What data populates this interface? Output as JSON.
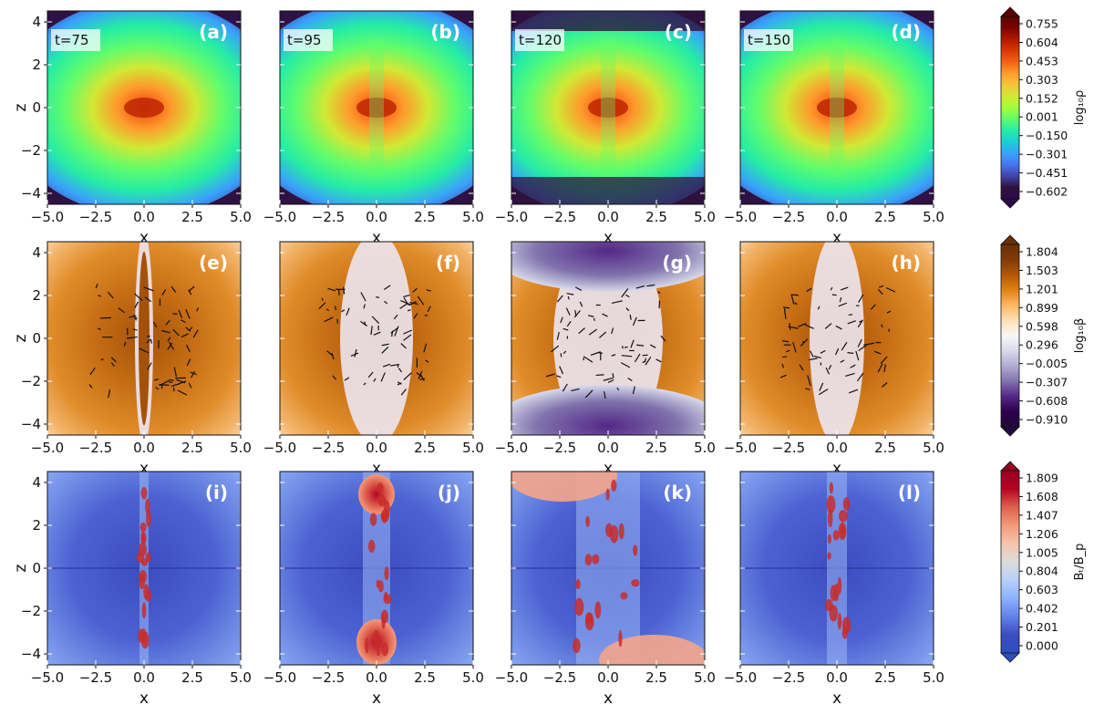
{
  "figure": {
    "rows": [
      {
        "colorbar": {
          "title": "log₁₀ρ",
          "ticks": [
            "0.755",
            "0.604",
            "0.453",
            "0.303",
            "0.152",
            "0.001",
            "−0.150",
            "−0.301",
            "−0.451",
            "−0.602"
          ],
          "colors": [
            "#2d0a4a",
            "#30123b",
            "#4145ab",
            "#4675ed",
            "#39a2fc",
            "#1bcfd4",
            "#24eca6",
            "#61fc6c",
            "#a4fc3b",
            "#d1e834",
            "#f3c63a",
            "#fe9b2d",
            "#f36315",
            "#d93806",
            "#b11901",
            "#7a0402",
            "#5a0202"
          ]
        },
        "panels": [
          {
            "label": "(a)",
            "time": "t=75"
          },
          {
            "label": "(b)",
            "time": "t=95"
          },
          {
            "label": "(c)",
            "time": "t=120"
          },
          {
            "label": "(d)",
            "time": "t=150"
          }
        ]
      },
      {
        "colorbar": {
          "title": "log₁₀β",
          "ticks": [
            "1.804",
            "1.503",
            "1.201",
            "0.899",
            "0.598",
            "0.296",
            "−0.005",
            "−0.307",
            "−0.608",
            "−0.910"
          ],
          "colors": [
            "#1f0a3a",
            "#2d004b",
            "#542788",
            "#8073ac",
            "#b2abd2",
            "#d8daeb",
            "#f7f7f7",
            "#fee0b6",
            "#fdb863",
            "#e08214",
            "#b35806",
            "#7f3b08",
            "#6a3006"
          ]
        },
        "panels": [
          {
            "label": "(e)"
          },
          {
            "label": "(f)"
          },
          {
            "label": "(g)"
          },
          {
            "label": "(h)"
          }
        ]
      },
      {
        "colorbar": {
          "title": "Bₜ/B_p",
          "ticks": [
            "1.809",
            "1.608",
            "1.407",
            "1.206",
            "1.005",
            "0.804",
            "0.603",
            "0.402",
            "0.201",
            "0.000"
          ],
          "colors": [
            "#2f4fc0",
            "#3b4cc0",
            "#6282ea",
            "#8db0fe",
            "#b8d0f9",
            "#dddcdc",
            "#f5c4ad",
            "#f49a7b",
            "#de604d",
            "#b40426",
            "#950020"
          ]
        },
        "panels": [
          {
            "label": "(i)"
          },
          {
            "label": "(j)"
          },
          {
            "label": "(k)"
          },
          {
            "label": "(l)"
          }
        ]
      }
    ],
    "axes": {
      "xlabel": "x",
      "ylabel": "z",
      "xticks": [
        "−5.0",
        "−2.5",
        "0.0",
        "2.5",
        "5.0"
      ],
      "yticks": [
        "4",
        "2",
        "0",
        "−2",
        "−4"
      ]
    }
  }
}
